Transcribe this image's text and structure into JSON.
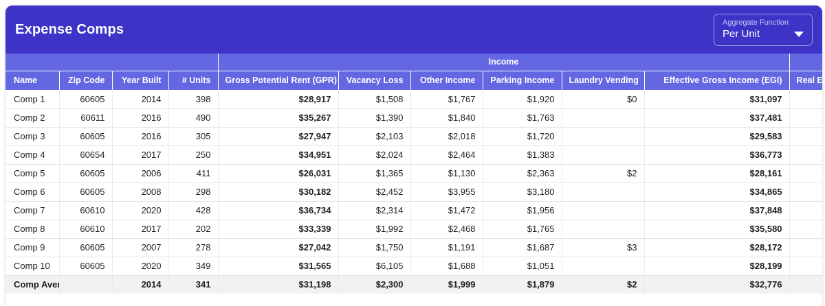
{
  "title": "Expense Comps",
  "aggregate": {
    "label": "Aggregate Function",
    "value": "Per Unit"
  },
  "table": {
    "group_headers": [
      "",
      "Income",
      ""
    ],
    "columns": [
      "Name",
      "Zip Code",
      "Year Built",
      "# Units",
      "Gross Potential Rent (GPR)",
      "Vacancy Loss",
      "Other Income",
      "Parking Income",
      "Laundry Vending",
      "Effective Gross Income (EGI)",
      "Real Esta"
    ],
    "rows": [
      [
        "Comp 1",
        "60605",
        "2014",
        "398",
        "$28,917",
        "$1,508",
        "$1,767",
        "$1,920",
        "$0",
        "$31,097",
        ""
      ],
      [
        "Comp 2",
        "60611",
        "2016",
        "490",
        "$35,267",
        "$1,390",
        "$1,840",
        "$1,763",
        "",
        "$37,481",
        ""
      ],
      [
        "Comp 3",
        "60605",
        "2016",
        "305",
        "$27,947",
        "$2,103",
        "$2,018",
        "$1,720",
        "",
        "$29,583",
        ""
      ],
      [
        "Comp 4",
        "60654",
        "2017",
        "250",
        "$34,951",
        "$2,024",
        "$2,464",
        "$1,383",
        "",
        "$36,773",
        ""
      ],
      [
        "Comp 5",
        "60605",
        "2006",
        "411",
        "$26,031",
        "$1,365",
        "$1,130",
        "$2,363",
        "$2",
        "$28,161",
        ""
      ],
      [
        "Comp 6",
        "60605",
        "2008",
        "298",
        "$30,182",
        "$2,452",
        "$3,955",
        "$3,180",
        "",
        "$34,865",
        ""
      ],
      [
        "Comp 7",
        "60610",
        "2020",
        "428",
        "$36,734",
        "$2,314",
        "$1,472",
        "$1,956",
        "",
        "$37,848",
        ""
      ],
      [
        "Comp 8",
        "60610",
        "2017",
        "202",
        "$33,339",
        "$1,992",
        "$2,468",
        "$1,765",
        "",
        "$35,580",
        ""
      ],
      [
        "Comp 9",
        "60605",
        "2007",
        "278",
        "$27,042",
        "$1,750",
        "$1,191",
        "$1,687",
        "$3",
        "$28,172",
        ""
      ],
      [
        "Comp 10",
        "60605",
        "2020",
        "349",
        "$31,565",
        "$6,105",
        "$1,688",
        "$1,051",
        "",
        "$28,199",
        ""
      ]
    ],
    "average_row": [
      "Comp Average",
      "",
      "2014",
      "341",
      "$31,198",
      "$2,300",
      "$1,999",
      "$1,879",
      "$2",
      "$32,776",
      ""
    ]
  },
  "colors": {
    "title_bar": "#3d34c7",
    "header_bar": "#6367e2",
    "avg_bg": "#f2f2f2"
  }
}
